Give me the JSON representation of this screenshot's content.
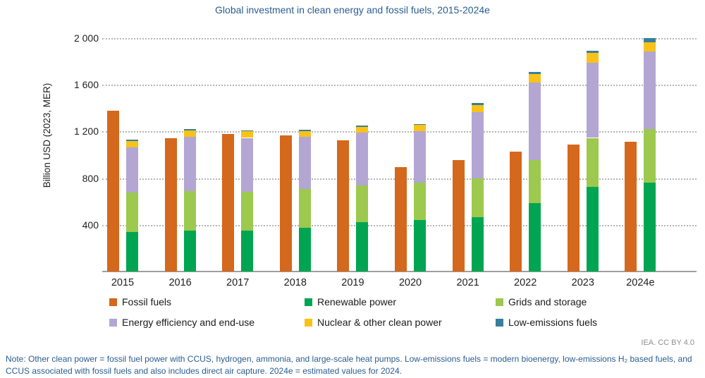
{
  "title": "Global investment in clean energy and fossil fuels, 2015-2024e",
  "y_axis": {
    "label": "Billion USD (2023, MER)",
    "ticks": [
      {
        "value": 400,
        "label": "400"
      },
      {
        "value": 800,
        "label": "800"
      },
      {
        "value": 1200,
        "label": "1 200"
      },
      {
        "value": 1600,
        "label": "1 600"
      },
      {
        "value": 2000,
        "label": "2 000"
      }
    ]
  },
  "chart_data": {
    "type": "bar",
    "subtype": "grouped-stacked",
    "title": "Global investment in clean energy and fossil fuels, 2015-2024e",
    "ylabel": "Billion USD (2023, MER)",
    "xlabel": "",
    "ylim": [
      0,
      2000
    ],
    "grid": "horizontal-dotted",
    "categories": [
      "2015",
      "2016",
      "2017",
      "2018",
      "2019",
      "2020",
      "2021",
      "2022",
      "2023",
      "2024e"
    ],
    "series": [
      {
        "name": "Fossil fuels",
        "stack": "fossil",
        "color": "#d4681c",
        "values": [
          1375,
          1140,
          1180,
          1165,
          1125,
          895,
          955,
          1030,
          1085,
          1110
        ]
      },
      {
        "name": "Renewable power",
        "stack": "clean",
        "color": "#00a551",
        "values": [
          340,
          350,
          350,
          375,
          420,
          440,
          465,
          585,
          725,
          760
        ]
      },
      {
        "name": "Grids and storage",
        "stack": "clean",
        "color": "#9cc94e",
        "values": [
          335,
          340,
          330,
          330,
          315,
          320,
          330,
          370,
          420,
          460
        ]
      },
      {
        "name": "Energy efficiency and end-use",
        "stack": "clean",
        "color": "#b3a6d2",
        "values": [
          390,
          465,
          465,
          450,
          455,
          440,
          570,
          665,
          645,
          665
        ]
      },
      {
        "name": "Nuclear & other clean power",
        "stack": "clean",
        "color": "#f9c218",
        "values": [
          55,
          55,
          55,
          45,
          50,
          55,
          60,
          70,
          85,
          80
        ]
      },
      {
        "name": "Low-emissions fuels",
        "stack": "clean",
        "color": "#377f9c",
        "values": [
          10,
          10,
          10,
          15,
          10,
          10,
          20,
          20,
          15,
          35
        ]
      }
    ],
    "legend_position": "bottom"
  },
  "legend": {
    "items": [
      {
        "label": "Fossil fuels",
        "color": "#d4681c"
      },
      {
        "label": "Renewable power",
        "color": "#00a551"
      },
      {
        "label": "Grids and storage",
        "color": "#9cc94e"
      },
      {
        "label": "Energy efficiency and end-use",
        "color": "#b3a6d2"
      },
      {
        "label": "Nuclear & other clean power",
        "color": "#f9c218"
      },
      {
        "label": "Low-emissions fuels",
        "color": "#377f9c"
      }
    ]
  },
  "note": "Note: Other clean power = fossil fuel power with CCUS, hydrogen, ammonia, and large-scale heat pumps. Low-emissions fuels = modern bioenergy, low-emissions H₂ based fuels, and CCUS associated with fossil fuels and also includes direct air capture. 2024e = estimated values for 2024.",
  "attribution": "IEA. CC BY 4.0"
}
